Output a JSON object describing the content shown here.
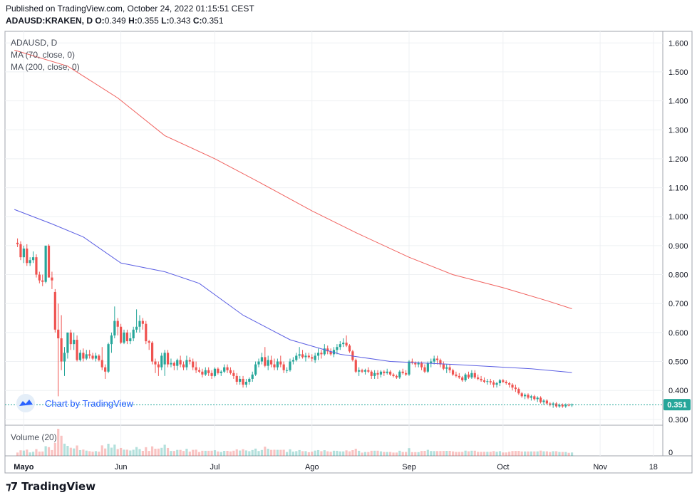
{
  "header": {
    "published": "Published on TradingView.com, October 24, 2022 01:15:51 CEST",
    "symbol": "ADAUSD:KRAKEN, D",
    "o_label": "O:",
    "o_value": "0.349",
    "h_label": "H:",
    "h_value": "0.355",
    "l_label": "L:",
    "l_value": "0.343",
    "c_label": "C:",
    "c_value": "0.351"
  },
  "legend": {
    "symbol": "ADAUSD, D",
    "ma70": "MA (70, close, 0)",
    "ma200": "MA (200, close, 0)",
    "volume": "Volume (20)"
  },
  "watermark": "Chart by TradingView",
  "brand": "TradingView",
  "colors": {
    "up": "#26a69a",
    "down": "#ef5350",
    "ma70": "#5b5fe3",
    "ma200": "#f0625f",
    "price_tag": "#26a69a"
  },
  "chart_data": {
    "type": "candlestick",
    "title": "ADAUSD, D",
    "ylim": [
      0.28,
      1.64
    ],
    "y_ticks": [
      "1.600",
      "1.500",
      "1.400",
      "1.300",
      "1.200",
      "1.100",
      "1.000",
      "0.900",
      "0.800",
      "0.700",
      "0.600",
      "0.500",
      "0.400",
      "0.300"
    ],
    "x_ticks": [
      "Mayo",
      "Jun",
      "Jul",
      "Ago",
      "Sep",
      "Oct",
      "Nov",
      "18"
    ],
    "x_tick_dates": [
      "2022-05-01",
      "2022-06-01",
      "2022-07-01",
      "2022-08-01",
      "2022-09-01",
      "2022-10-01",
      "2022-11-01",
      "2022-11-18"
    ],
    "last_price": "0.351",
    "volume_ticks": [
      "0"
    ],
    "ma200": [
      [
        "2022-04-28",
        1.575
      ],
      [
        "2022-05-15",
        1.52
      ],
      [
        "2022-05-31",
        1.41
      ],
      [
        "2022-06-15",
        1.28
      ],
      [
        "2022-07-01",
        1.2
      ],
      [
        "2022-07-15",
        1.12
      ],
      [
        "2022-08-01",
        1.02
      ],
      [
        "2022-08-15",
        0.945
      ],
      [
        "2022-09-01",
        0.86
      ],
      [
        "2022-09-15",
        0.8
      ],
      [
        "2022-10-01",
        0.755
      ],
      [
        "2022-10-15",
        0.71
      ],
      [
        "2022-10-23",
        0.682
      ]
    ],
    "ma70": [
      [
        "2022-04-28",
        1.025
      ],
      [
        "2022-05-10",
        0.975
      ],
      [
        "2022-05-20",
        0.93
      ],
      [
        "2022-06-01",
        0.84
      ],
      [
        "2022-06-15",
        0.81
      ],
      [
        "2022-06-26",
        0.77
      ],
      [
        "2022-07-10",
        0.66
      ],
      [
        "2022-07-25",
        0.575
      ],
      [
        "2022-08-10",
        0.525
      ],
      [
        "2022-08-26",
        0.5
      ],
      [
        "2022-09-15",
        0.49
      ],
      [
        "2022-10-10",
        0.475
      ],
      [
        "2022-10-23",
        0.462
      ]
    ],
    "ohlc": [
      [
        "2022-04-29",
        0.91,
        0.925,
        0.895,
        0.905
      ],
      [
        "2022-04-30",
        0.905,
        0.915,
        0.85,
        0.86
      ],
      [
        "2022-05-01",
        0.86,
        0.9,
        0.84,
        0.89
      ],
      [
        "2022-05-02",
        0.89,
        0.905,
        0.83,
        0.84
      ],
      [
        "2022-05-03",
        0.84,
        0.86,
        0.83,
        0.85
      ],
      [
        "2022-05-04",
        0.85,
        0.88,
        0.84,
        0.86
      ],
      [
        "2022-05-05",
        0.86,
        0.87,
        0.79,
        0.8
      ],
      [
        "2022-05-06",
        0.8,
        0.81,
        0.77,
        0.78
      ],
      [
        "2022-05-07",
        0.78,
        0.8,
        0.76,
        0.775
      ],
      [
        "2022-05-08",
        0.775,
        0.9,
        0.77,
        0.9
      ],
      [
        "2022-05-09",
        0.9,
        0.905,
        0.79,
        0.79
      ],
      [
        "2022-05-10",
        0.79,
        0.81,
        0.75,
        0.78
      ],
      [
        "2022-05-11",
        0.74,
        0.75,
        0.6,
        0.61
      ],
      [
        "2022-05-12",
        0.61,
        0.7,
        0.38,
        0.58
      ],
      [
        "2022-05-13",
        0.58,
        0.66,
        0.47,
        0.5
      ],
      [
        "2022-05-14",
        0.5,
        0.55,
        0.45,
        0.53
      ],
      [
        "2022-05-15",
        0.53,
        0.6,
        0.51,
        0.6
      ],
      [
        "2022-05-16",
        0.6,
        0.61,
        0.54,
        0.56
      ],
      [
        "2022-05-17",
        0.56,
        0.6,
        0.54,
        0.575
      ],
      [
        "2022-05-18",
        0.575,
        0.59,
        0.5,
        0.505
      ],
      [
        "2022-05-19",
        0.505,
        0.54,
        0.5,
        0.53
      ],
      [
        "2022-05-20",
        0.53,
        0.545,
        0.5,
        0.51
      ],
      [
        "2022-05-21",
        0.51,
        0.54,
        0.505,
        0.525
      ],
      [
        "2022-05-22",
        0.525,
        0.54,
        0.51,
        0.52
      ],
      [
        "2022-05-23",
        0.52,
        0.53,
        0.505,
        0.51
      ],
      [
        "2022-05-24",
        0.51,
        0.53,
        0.5,
        0.52
      ],
      [
        "2022-05-25",
        0.52,
        0.525,
        0.5,
        0.505
      ],
      [
        "2022-05-26",
        0.505,
        0.55,
        0.47,
        0.48
      ],
      [
        "2022-05-27",
        0.48,
        0.49,
        0.44,
        0.465
      ],
      [
        "2022-05-28",
        0.465,
        0.565,
        0.46,
        0.56
      ],
      [
        "2022-05-29",
        0.56,
        0.6,
        0.53,
        0.59
      ],
      [
        "2022-05-30",
        0.59,
        0.69,
        0.58,
        0.64
      ],
      [
        "2022-05-31",
        0.64,
        0.65,
        0.59,
        0.62
      ],
      [
        "2022-06-01",
        0.62,
        0.63,
        0.56,
        0.565
      ],
      [
        "2022-06-02",
        0.565,
        0.61,
        0.56,
        0.6
      ],
      [
        "2022-06-03",
        0.6,
        0.61,
        0.56,
        0.57
      ],
      [
        "2022-06-04",
        0.57,
        0.6,
        0.56,
        0.58
      ],
      [
        "2022-06-05",
        0.58,
        0.62,
        0.57,
        0.61
      ],
      [
        "2022-06-06",
        0.61,
        0.68,
        0.6,
        0.62
      ],
      [
        "2022-06-07",
        0.62,
        0.66,
        0.6,
        0.64
      ],
      [
        "2022-06-08",
        0.64,
        0.65,
        0.61,
        0.63
      ],
      [
        "2022-06-09",
        0.63,
        0.64,
        0.56,
        0.57
      ],
      [
        "2022-06-10",
        0.57,
        0.575,
        0.54,
        0.565
      ],
      [
        "2022-06-11",
        0.565,
        0.57,
        0.49,
        0.5
      ],
      [
        "2022-06-12",
        0.5,
        0.51,
        0.46,
        0.49
      ],
      [
        "2022-06-13",
        0.49,
        0.5,
        0.45,
        0.48
      ],
      [
        "2022-06-14",
        0.48,
        0.53,
        0.47,
        0.52
      ],
      [
        "2022-06-15",
        0.49,
        0.54,
        0.45,
        0.53
      ],
      [
        "2022-06-16",
        0.53,
        0.54,
        0.48,
        0.49
      ],
      [
        "2022-06-17",
        0.49,
        0.51,
        0.48,
        0.495
      ],
      [
        "2022-06-18",
        0.495,
        0.5,
        0.47,
        0.485
      ],
      [
        "2022-06-19",
        0.485,
        0.51,
        0.47,
        0.505
      ],
      [
        "2022-06-20",
        0.505,
        0.52,
        0.48,
        0.49
      ],
      [
        "2022-06-21",
        0.49,
        0.5,
        0.47,
        0.48
      ],
      [
        "2022-06-22",
        0.48,
        0.52,
        0.47,
        0.505
      ],
      [
        "2022-06-23",
        0.505,
        0.515,
        0.49,
        0.5
      ],
      [
        "2022-06-24",
        0.5,
        0.51,
        0.47,
        0.48
      ],
      [
        "2022-06-25",
        0.48,
        0.5,
        0.46,
        0.47
      ],
      [
        "2022-06-26",
        0.47,
        0.48,
        0.46,
        0.465
      ],
      [
        "2022-06-27",
        0.465,
        0.475,
        0.445,
        0.455
      ],
      [
        "2022-06-28",
        0.455,
        0.48,
        0.45,
        0.47
      ],
      [
        "2022-06-29",
        0.47,
        0.48,
        0.45,
        0.46
      ],
      [
        "2022-06-30",
        0.46,
        0.47,
        0.44,
        0.45
      ],
      [
        "2022-07-01",
        0.45,
        0.48,
        0.445,
        0.475
      ],
      [
        "2022-07-02",
        0.475,
        0.48,
        0.455,
        0.46
      ],
      [
        "2022-07-03",
        0.46,
        0.47,
        0.45,
        0.465
      ],
      [
        "2022-07-04",
        0.465,
        0.49,
        0.46,
        0.48
      ],
      [
        "2022-07-05",
        0.48,
        0.49,
        0.46,
        0.47
      ],
      [
        "2022-07-06",
        0.47,
        0.48,
        0.455,
        0.46
      ],
      [
        "2022-07-07",
        0.46,
        0.47,
        0.44,
        0.45
      ],
      [
        "2022-07-08",
        0.45,
        0.46,
        0.42,
        0.43
      ],
      [
        "2022-07-09",
        0.43,
        0.45,
        0.42,
        0.44
      ],
      [
        "2022-07-10",
        0.44,
        0.45,
        0.41,
        0.42
      ],
      [
        "2022-07-11",
        0.42,
        0.44,
        0.41,
        0.43
      ],
      [
        "2022-07-12",
        0.43,
        0.445,
        0.42,
        0.44
      ],
      [
        "2022-07-13",
        0.44,
        0.465,
        0.43,
        0.455
      ],
      [
        "2022-07-14",
        0.455,
        0.5,
        0.45,
        0.49
      ],
      [
        "2022-07-15",
        0.49,
        0.51,
        0.48,
        0.5
      ],
      [
        "2022-07-16",
        0.5,
        0.53,
        0.49,
        0.515
      ],
      [
        "2022-07-17",
        0.515,
        0.55,
        0.48,
        0.485
      ],
      [
        "2022-07-18",
        0.485,
        0.52,
        0.47,
        0.505
      ],
      [
        "2022-07-19",
        0.505,
        0.52,
        0.48,
        0.49
      ],
      [
        "2022-07-20",
        0.49,
        0.51,
        0.47,
        0.48
      ],
      [
        "2022-07-21",
        0.48,
        0.51,
        0.47,
        0.5
      ],
      [
        "2022-07-22",
        0.5,
        0.52,
        0.48,
        0.49
      ],
      [
        "2022-07-23",
        0.49,
        0.5,
        0.46,
        0.47
      ],
      [
        "2022-07-24",
        0.47,
        0.48,
        0.46,
        0.47
      ],
      [
        "2022-07-25",
        0.47,
        0.51,
        0.465,
        0.5
      ],
      [
        "2022-07-26",
        0.5,
        0.515,
        0.49,
        0.505
      ],
      [
        "2022-07-27",
        0.505,
        0.53,
        0.5,
        0.52
      ],
      [
        "2022-07-28",
        0.52,
        0.55,
        0.51,
        0.525
      ],
      [
        "2022-07-29",
        0.525,
        0.54,
        0.51,
        0.515
      ],
      [
        "2022-07-30",
        0.515,
        0.53,
        0.5,
        0.52
      ],
      [
        "2022-07-31",
        0.52,
        0.53,
        0.51,
        0.515
      ],
      [
        "2022-08-01",
        0.515,
        0.525,
        0.5,
        0.51
      ],
      [
        "2022-08-02",
        0.505,
        0.53,
        0.495,
        0.52
      ],
      [
        "2022-08-03",
        0.52,
        0.545,
        0.505,
        0.53
      ],
      [
        "2022-08-04",
        0.53,
        0.54,
        0.51,
        0.525
      ],
      [
        "2022-08-05",
        0.525,
        0.56,
        0.52,
        0.545
      ],
      [
        "2022-08-06",
        0.545,
        0.555,
        0.525,
        0.535
      ],
      [
        "2022-08-07",
        0.535,
        0.545,
        0.52,
        0.525
      ],
      [
        "2022-08-08",
        0.525,
        0.55,
        0.515,
        0.54
      ],
      [
        "2022-08-09",
        0.54,
        0.56,
        0.525,
        0.55
      ],
      [
        "2022-08-10",
        0.55,
        0.57,
        0.54,
        0.56
      ],
      [
        "2022-08-11",
        0.56,
        0.58,
        0.55,
        0.565
      ],
      [
        "2022-08-12",
        0.565,
        0.59,
        0.55,
        0.555
      ],
      [
        "2022-08-13",
        0.555,
        0.56,
        0.53,
        0.535
      ],
      [
        "2022-08-14",
        0.535,
        0.54,
        0.5,
        0.505
      ],
      [
        "2022-08-15",
        0.505,
        0.51,
        0.46,
        0.465
      ],
      [
        "2022-08-16",
        0.465,
        0.48,
        0.45,
        0.47
      ],
      [
        "2022-08-17",
        0.47,
        0.475,
        0.46,
        0.465
      ],
      [
        "2022-08-18",
        0.465,
        0.475,
        0.455,
        0.47
      ],
      [
        "2022-08-19",
        0.47,
        0.48,
        0.46,
        0.465
      ],
      [
        "2022-08-20",
        0.465,
        0.47,
        0.44,
        0.45
      ],
      [
        "2022-08-21",
        0.45,
        0.47,
        0.44,
        0.46
      ],
      [
        "2022-08-22",
        0.46,
        0.47,
        0.44,
        0.455
      ],
      [
        "2022-08-23",
        0.455,
        0.47,
        0.445,
        0.465
      ],
      [
        "2022-08-24",
        0.465,
        0.47,
        0.45,
        0.46
      ],
      [
        "2022-08-25",
        0.46,
        0.475,
        0.455,
        0.465
      ],
      [
        "2022-08-26",
        0.465,
        0.47,
        0.45,
        0.455
      ],
      [
        "2022-08-27",
        0.455,
        0.46,
        0.445,
        0.45
      ],
      [
        "2022-08-28",
        0.45,
        0.455,
        0.44,
        0.445
      ],
      [
        "2022-08-29",
        0.445,
        0.47,
        0.44,
        0.465
      ],
      [
        "2022-08-30",
        0.465,
        0.475,
        0.455,
        0.46
      ],
      [
        "2022-08-31",
        0.46,
        0.47,
        0.45,
        0.455
      ],
      [
        "2022-09-01",
        0.455,
        0.505,
        0.45,
        0.5
      ],
      [
        "2022-09-02",
        0.5,
        0.51,
        0.49,
        0.495
      ],
      [
        "2022-09-03",
        0.495,
        0.5,
        0.48,
        0.49
      ],
      [
        "2022-09-04",
        0.49,
        0.5,
        0.48,
        0.495
      ],
      [
        "2022-09-05",
        0.495,
        0.5,
        0.47,
        0.48
      ],
      [
        "2022-09-06",
        0.48,
        0.49,
        0.46,
        0.465
      ],
      [
        "2022-09-07",
        0.465,
        0.5,
        0.46,
        0.495
      ],
      [
        "2022-09-08",
        0.495,
        0.51,
        0.48,
        0.5
      ],
      [
        "2022-09-09",
        0.5,
        0.52,
        0.49,
        0.51
      ],
      [
        "2022-09-10",
        0.51,
        0.52,
        0.49,
        0.505
      ],
      [
        "2022-09-11",
        0.505,
        0.51,
        0.48,
        0.49
      ],
      [
        "2022-09-12",
        0.49,
        0.5,
        0.47,
        0.475
      ],
      [
        "2022-09-13",
        0.475,
        0.49,
        0.46,
        0.48
      ],
      [
        "2022-09-14",
        0.48,
        0.49,
        0.46,
        0.47
      ],
      [
        "2022-09-15",
        0.47,
        0.475,
        0.45,
        0.455
      ],
      [
        "2022-09-16",
        0.455,
        0.465,
        0.445,
        0.45
      ],
      [
        "2022-09-17",
        0.45,
        0.46,
        0.44,
        0.445
      ],
      [
        "2022-09-18",
        0.445,
        0.45,
        0.43,
        0.435
      ],
      [
        "2022-09-19",
        0.435,
        0.46,
        0.43,
        0.455
      ],
      [
        "2022-09-20",
        0.455,
        0.465,
        0.44,
        0.445
      ],
      [
        "2022-09-21",
        0.445,
        0.47,
        0.44,
        0.46
      ],
      [
        "2022-09-22",
        0.46,
        0.47,
        0.44,
        0.445
      ],
      [
        "2022-09-23",
        0.445,
        0.455,
        0.435,
        0.44
      ],
      [
        "2022-09-24",
        0.44,
        0.45,
        0.43,
        0.435
      ],
      [
        "2022-09-25",
        0.435,
        0.445,
        0.425,
        0.43
      ],
      [
        "2022-09-26",
        0.43,
        0.44,
        0.42,
        0.432
      ],
      [
        "2022-09-27",
        0.432,
        0.44,
        0.42,
        0.428
      ],
      [
        "2022-09-28",
        0.428,
        0.435,
        0.41,
        0.42
      ],
      [
        "2022-09-29",
        0.42,
        0.43,
        0.41,
        0.425
      ],
      [
        "2022-09-30",
        0.425,
        0.44,
        0.415,
        0.435
      ],
      [
        "2022-10-01",
        0.435,
        0.44,
        0.425,
        0.43
      ],
      [
        "2022-10-02",
        0.43,
        0.435,
        0.42,
        0.425
      ],
      [
        "2022-10-03",
        0.425,
        0.43,
        0.41,
        0.42
      ],
      [
        "2022-10-04",
        0.42,
        0.425,
        0.4,
        0.41
      ],
      [
        "2022-10-05",
        0.41,
        0.42,
        0.395,
        0.405
      ],
      [
        "2022-10-06",
        0.405,
        0.41,
        0.385,
        0.39
      ],
      [
        "2022-10-07",
        0.39,
        0.395,
        0.375,
        0.38
      ],
      [
        "2022-10-08",
        0.38,
        0.39,
        0.37,
        0.385
      ],
      [
        "2022-10-09",
        0.385,
        0.39,
        0.37,
        0.375
      ],
      [
        "2022-10-10",
        0.375,
        0.385,
        0.365,
        0.38
      ],
      [
        "2022-10-11",
        0.38,
        0.385,
        0.365,
        0.37
      ],
      [
        "2022-10-12",
        0.37,
        0.38,
        0.36,
        0.375
      ],
      [
        "2022-10-13",
        0.375,
        0.38,
        0.355,
        0.36
      ],
      [
        "2022-10-14",
        0.36,
        0.37,
        0.35,
        0.365
      ],
      [
        "2022-10-15",
        0.365,
        0.37,
        0.35,
        0.355
      ],
      [
        "2022-10-16",
        0.355,
        0.36,
        0.345,
        0.35
      ],
      [
        "2022-10-17",
        0.35,
        0.36,
        0.34,
        0.355
      ],
      [
        "2022-10-18",
        0.355,
        0.36,
        0.34,
        0.345
      ],
      [
        "2022-10-19",
        0.345,
        0.355,
        0.34,
        0.35
      ],
      [
        "2022-10-20",
        0.35,
        0.355,
        0.34,
        0.345
      ],
      [
        "2022-10-21",
        0.345,
        0.355,
        0.34,
        0.35
      ],
      [
        "2022-10-22",
        0.35,
        0.355,
        0.345,
        0.349
      ],
      [
        "2022-10-23",
        0.349,
        0.355,
        0.343,
        0.351
      ]
    ]
  }
}
